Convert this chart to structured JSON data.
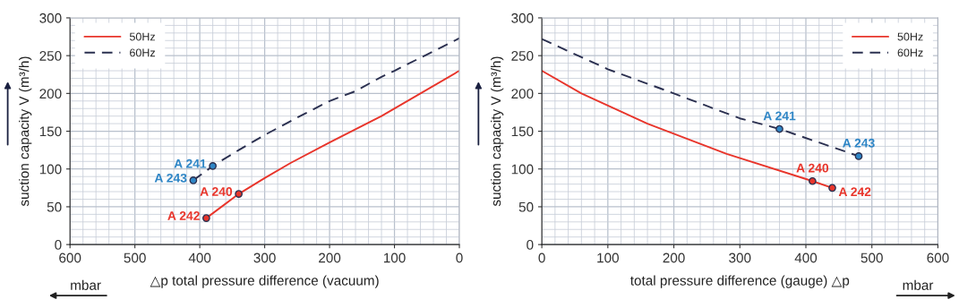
{
  "chart_data": [
    {
      "type": "line",
      "xlabel": "△p total pressure difference (vacuum)",
      "ylabel": "suction capacity V (m³/h)",
      "annotations": [
        "mbar"
      ],
      "xlim": [
        600,
        0
      ],
      "ylim": [
        0,
        300
      ],
      "xticks": [
        0,
        100,
        200,
        300,
        400,
        500,
        600
      ],
      "yticks": [
        0,
        50,
        100,
        150,
        200,
        250,
        300
      ],
      "grid": true,
      "legend": "top left",
      "series": [
        {
          "name": "50Hz",
          "color": "#e8352b",
          "line_style": "solid",
          "x": [
            390,
            340,
            300,
            260,
            200,
            120,
            0
          ],
          "values": [
            35,
            67,
            88,
            108,
            135,
            170,
            230
          ]
        },
        {
          "name": "60Hz",
          "color": "#2b3050",
          "line_style": "dashed",
          "x": [
            410,
            380,
            340,
            300,
            250,
            200,
            160,
            120,
            100,
            0
          ],
          "values": [
            85,
            104,
            125,
            145,
            168,
            190,
            203,
            222,
            230,
            273
          ]
        },
        {
          "type": "scatter",
          "color": "#2f86c6",
          "x": [
            380,
            410
          ],
          "values": [
            104,
            85
          ],
          "value_labels": [
            "A 241",
            "A 243"
          ]
        },
        {
          "type": "scatter",
          "color": "#e8352b",
          "x": [
            340,
            390
          ],
          "values": [
            67,
            35
          ],
          "value_labels": [
            "A 240",
            "A 242"
          ]
        }
      ]
    },
    {
      "type": "line",
      "xlabel": "total pressure difference (gauge) △p",
      "ylabel": "suction capacity V (m³/h)",
      "annotations": [
        "mbar"
      ],
      "xlim": [
        0,
        600
      ],
      "ylim": [
        0,
        300
      ],
      "xticks": [
        0,
        100,
        200,
        300,
        400,
        500,
        600
      ],
      "yticks": [
        0,
        50,
        100,
        150,
        200,
        250,
        300
      ],
      "grid": true,
      "legend": "top right",
      "series": [
        {
          "name": "50Hz",
          "color": "#e8352b",
          "line_style": "solid",
          "x": [
            0,
            60,
            160,
            280,
            410,
            440
          ],
          "values": [
            230,
            200,
            160,
            120,
            84,
            75
          ]
        },
        {
          "name": "60Hz",
          "color": "#2b3050",
          "line_style": "dashed",
          "x": [
            0,
            100,
            200,
            300,
            360,
            420,
            480
          ],
          "values": [
            272,
            232,
            200,
            167,
            153,
            135,
            117
          ]
        },
        {
          "type": "scatter",
          "color": "#2f86c6",
          "x": [
            360,
            480
          ],
          "values": [
            153,
            117
          ],
          "value_labels": [
            "A 241",
            "A 243"
          ]
        },
        {
          "type": "scatter",
          "color": "#e8352b",
          "x": [
            410,
            440
          ],
          "values": [
            84,
            75
          ],
          "value_labels": [
            "A 240",
            "A 242"
          ]
        }
      ]
    }
  ]
}
